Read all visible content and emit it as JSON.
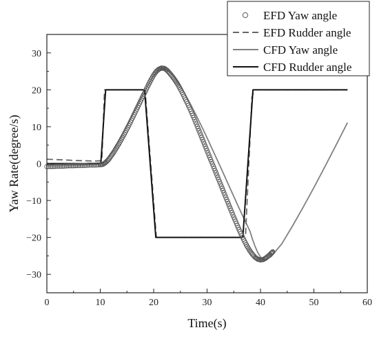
{
  "chart_data": {
    "type": "line",
    "title": "",
    "xlabel": "Time(s)",
    "ylabel": "Yaw Rate(degree/s)",
    "xlim": [
      0,
      60
    ],
    "ylim": [
      -35,
      35
    ],
    "x_ticks": [
      0,
      10,
      20,
      30,
      40,
      50,
      60
    ],
    "y_ticks": [
      -30,
      -20,
      -10,
      0,
      10,
      20,
      30
    ],
    "x_tick_labels": [
      "0",
      "10",
      "20",
      "30",
      "40",
      "50",
      "60"
    ],
    "y_tick_labels": [
      "−30",
      "−20",
      "−10",
      "0",
      "10",
      "20",
      "30"
    ],
    "grid": false,
    "legend_position": "top-right",
    "series": [
      {
        "name": "EFD Yaw angle",
        "style": "markers-open-circle",
        "color": "#555555",
        "x": [
          0,
          1,
          2,
          3,
          4,
          5,
          6,
          7,
          8,
          9,
          10,
          10.5,
          11,
          11.5,
          12,
          12.5,
          13,
          13.5,
          14,
          14.5,
          15,
          15.5,
          16,
          16.5,
          17,
          17.5,
          18,
          18.5,
          19,
          19.5,
          20,
          20.5,
          21,
          21.5,
          22,
          22.5,
          23,
          23.5,
          24,
          24.5,
          25,
          25.5,
          26,
          26.5,
          27,
          27.5,
          28,
          28.5,
          29,
          29.5,
          30,
          30.5,
          31,
          31.5,
          32,
          32.5,
          33,
          33.5,
          34,
          34.5,
          35,
          35.5,
          36,
          36.5,
          37,
          37.5,
          38,
          38.5,
          39,
          39.5,
          40,
          40.5,
          41,
          41.5,
          42,
          42.3
        ],
        "y": [
          -0.8,
          -0.8,
          -0.7,
          -0.7,
          -0.6,
          -0.6,
          -0.5,
          -0.5,
          -0.4,
          -0.4,
          -0.3,
          -0.2,
          0.3,
          1,
          2,
          3,
          4.2,
          5.4,
          6.7,
          8,
          9.4,
          10.8,
          12.3,
          13.8,
          15.3,
          16.8,
          18.3,
          19.8,
          21.3,
          22.7,
          24,
          25,
          25.6,
          25.9,
          25.8,
          25.3,
          24.5,
          23.6,
          22.6,
          21.5,
          20.2,
          18.8,
          17.3,
          15.8,
          14.2,
          12.5,
          10.7,
          8.9,
          7.1,
          5.3,
          3.5,
          1.7,
          -0.1,
          -1.9,
          -3.7,
          -5.5,
          -7.3,
          -9.1,
          -10.9,
          -12.7,
          -14.5,
          -16.2,
          -17.9,
          -19.5,
          -21,
          -22.4,
          -23.6,
          -24.6,
          -25.4,
          -25.9,
          -26.1,
          -26,
          -25.6,
          -25,
          -24.3,
          -23.9
        ]
      },
      {
        "name": "EFD Rudder angle",
        "style": "dashed",
        "color": "#666666",
        "x": [
          0,
          3,
          6,
          9,
          10.3,
          10.8,
          18.1,
          18.4,
          20.5,
          21,
          36.5,
          37.2,
          38.4,
          38.9,
          56.3
        ],
        "y": [
          1.2,
          1.0,
          0.8,
          0.7,
          0.8,
          20,
          20,
          19.8,
          -20,
          -20,
          -20,
          -19.5,
          18,
          20,
          20
        ]
      },
      {
        "name": "CFD Yaw angle",
        "style": "solid",
        "color": "#808080",
        "x": [
          0,
          5,
          10,
          10.5,
          11,
          11.5,
          12,
          12.5,
          13,
          13.5,
          14,
          14.5,
          15,
          15.5,
          16,
          16.5,
          17,
          17.5,
          18,
          18.5,
          19,
          19.5,
          20,
          20.5,
          21,
          21.5,
          22,
          22.5,
          23,
          23.5,
          24,
          25,
          26,
          27,
          28,
          29,
          30,
          31,
          32,
          33,
          34,
          35,
          36,
          37,
          38,
          38.5,
          39,
          39.5,
          40,
          40.5,
          41,
          42,
          44,
          46,
          48,
          50,
          52,
          54,
          56.3
        ],
        "y": [
          -0.4,
          -0.3,
          -0.1,
          0.2,
          0.8,
          1.7,
          2.8,
          3.9,
          5.1,
          6.3,
          7.6,
          8.9,
          10.2,
          11.6,
          13,
          14.4,
          15.8,
          17.2,
          18.6,
          20,
          21.4,
          22.7,
          23.9,
          24.9,
          25.6,
          25.9,
          25.9,
          25.5,
          24.8,
          24,
          23.2,
          21,
          18.5,
          15.8,
          13,
          10,
          7,
          3.8,
          0.7,
          -2.5,
          -5.7,
          -8.9,
          -12.1,
          -15.2,
          -18.2,
          -20.5,
          -22.5,
          -24.1,
          -25.3,
          -26,
          -26,
          -25.2,
          -21.7,
          -16.9,
          -11.8,
          -6.5,
          -1,
          4.6,
          11.1
        ]
      },
      {
        "name": "CFD Rudder angle",
        "style": "solid",
        "color": "#111111",
        "x": [
          0,
          10.1,
          11,
          18.3,
          20.4,
          36.7,
          38.6,
          56.3
        ],
        "y": [
          0,
          0,
          20,
          20,
          -20,
          -20,
          20,
          20
        ]
      }
    ]
  }
}
